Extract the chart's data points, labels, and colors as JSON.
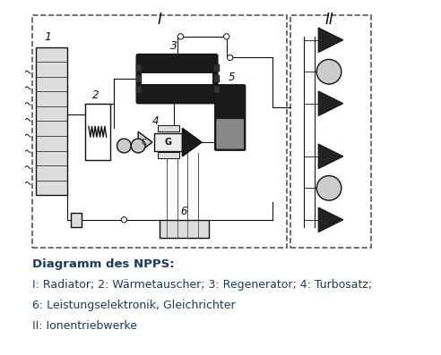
{
  "title_region_label_I": "I",
  "title_region_label_II": "II",
  "caption_line1": "Diagramm des NPPS:",
  "caption_line2": "I: Radiator; 2: Wärmetauscher; 3: Regenerator; 4: Turbosatz;",
  "caption_line3": "6: Leistungselektronik, Gleichrichter",
  "caption_line4": "II: Ionentriebwerke",
  "bg_color": "#ffffff",
  "box_color": "#000000",
  "dashed_color": "#555555",
  "text_color": "#1a3a5c",
  "caption_fontsize": 9.5,
  "label_fontsize": 12,
  "fig_width": 4.92,
  "fig_height": 3.97,
  "dpi": 100
}
